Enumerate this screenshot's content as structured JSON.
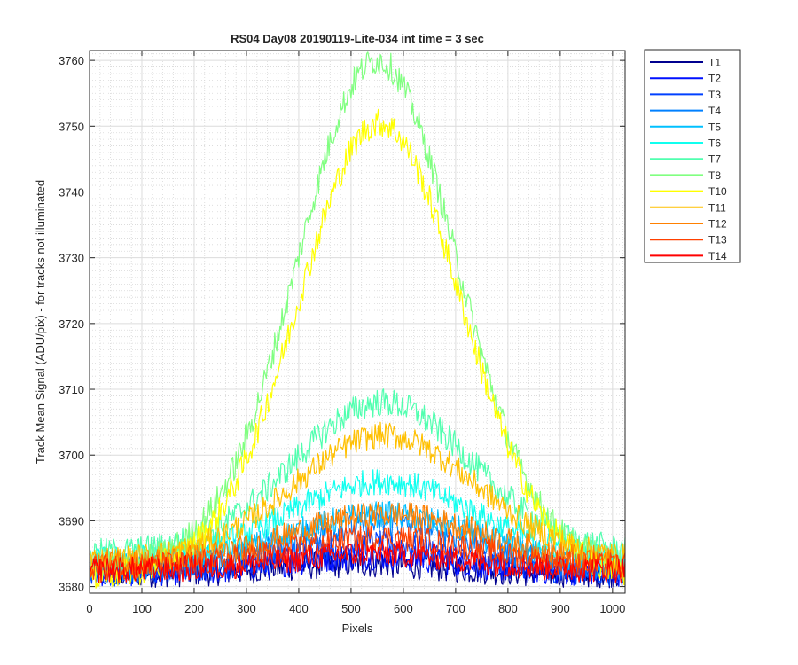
{
  "chart_data": {
    "type": "line",
    "title": "RS04 Day08 20190119-Lite-034 int time = 3 sec",
    "xlabel": "Pixels",
    "ylabel": "Track Mean Signal (ADU/pix) - for tracks not illuminated",
    "xlim": [
      0,
      1024
    ],
    "ylim": [
      3679,
      3761.5
    ],
    "xticks": [
      0,
      100,
      200,
      300,
      400,
      500,
      600,
      700,
      800,
      900,
      1000
    ],
    "yticks": [
      3680,
      3690,
      3700,
      3710,
      3720,
      3730,
      3740,
      3750,
      3760
    ],
    "grid": "major and minor",
    "legend_position": "outside-top-right",
    "series": [
      {
        "name": "T1",
        "color": "#00008f",
        "base": 3682,
        "amplitude": 1.5,
        "center": 520,
        "width": 220,
        "noise": 2.2
      },
      {
        "name": "T2",
        "color": "#0010ff",
        "base": 3682,
        "amplitude": 2.5,
        "center": 540,
        "width": 230,
        "noise": 2.0
      },
      {
        "name": "T3",
        "color": "#0040ff",
        "base": 3682,
        "amplitude": 4.5,
        "center": 540,
        "width": 240,
        "noise": 2.0
      },
      {
        "name": "T4",
        "color": "#0080ff",
        "base": 3682.5,
        "amplitude": 7,
        "center": 560,
        "width": 250,
        "noise": 2.0
      },
      {
        "name": "T5",
        "color": "#00c0ff",
        "base": 3683,
        "amplitude": 8,
        "center": 560,
        "width": 260,
        "noise": 2.0
      },
      {
        "name": "T6",
        "color": "#10ffef",
        "base": 3684,
        "amplitude": 12,
        "center": 560,
        "width": 250,
        "noise": 2.0
      },
      {
        "name": "T7",
        "color": "#50ffaf",
        "base": 3685,
        "amplitude": 23,
        "center": 560,
        "width": 240,
        "noise": 2.2
      },
      {
        "name": "T8",
        "color": "#80ff80",
        "base": 3683,
        "amplitude": 77,
        "center": 550,
        "width": 215,
        "noise": 2.2
      },
      {
        "name": "T10",
        "color": "#ffff00",
        "base": 3681.5,
        "amplitude": 69,
        "center": 555,
        "width": 220,
        "noise": 2.2
      },
      {
        "name": "T11",
        "color": "#ffc000",
        "base": 3684,
        "amplitude": 19,
        "center": 565,
        "width": 245,
        "noise": 2.0
      },
      {
        "name": "T12",
        "color": "#ff8000",
        "base": 3683.5,
        "amplitude": 7.5,
        "center": 570,
        "width": 260,
        "noise": 2.0
      },
      {
        "name": "T13",
        "color": "#ff4000",
        "base": 3683,
        "amplitude": 4.5,
        "center": 560,
        "width": 250,
        "noise": 2.0
      },
      {
        "name": "T14",
        "color": "#ff0000",
        "base": 3682.5,
        "amplitude": 2.5,
        "center": 550,
        "width": 240,
        "noise": 2.0
      }
    ]
  }
}
